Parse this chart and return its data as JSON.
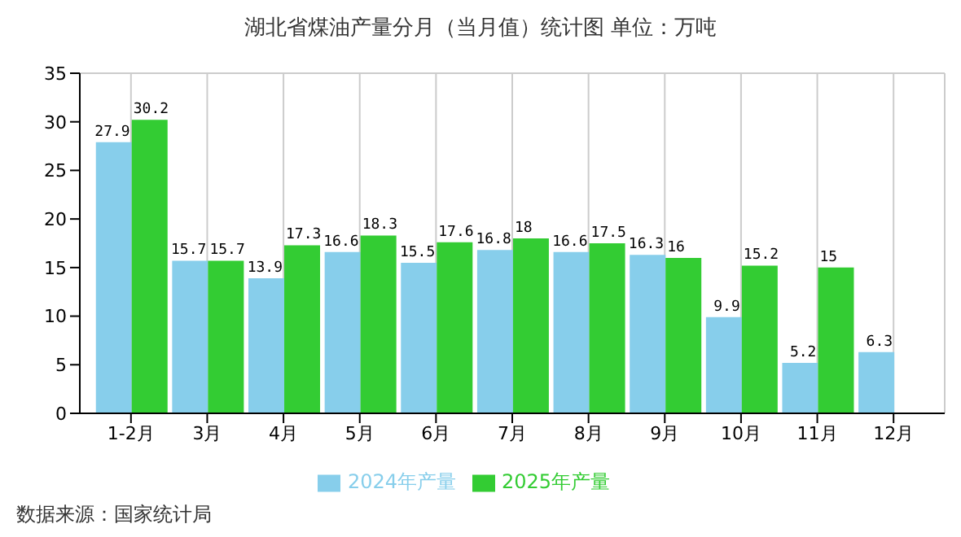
{
  "chart_data": {
    "type": "bar",
    "title": "湖北省煤油产量分月（当月值）统计图 单位：万吨",
    "categories": [
      "1-2月",
      "3月",
      "4月",
      "5月",
      "6月",
      "7月",
      "8月",
      "9月",
      "10月",
      "11月",
      "12月"
    ],
    "series": [
      {
        "name": "2024年产量",
        "color": "#87ceeb",
        "values": [
          27.9,
          15.7,
          13.9,
          16.6,
          15.5,
          16.8,
          16.6,
          16.3,
          9.9,
          5.2,
          6.3
        ]
      },
      {
        "name": "2025年产量",
        "color": "#33cc33",
        "values": [
          30.2,
          15.7,
          17.3,
          18.3,
          17.6,
          18,
          17.5,
          16,
          15.2,
          15,
          null
        ]
      }
    ],
    "ylim": [
      0,
      35
    ],
    "yticks": [
      0,
      5,
      10,
      15,
      20,
      25,
      30,
      35
    ],
    "grid": true,
    "legend": "bottom",
    "data_labels": true,
    "annotations": [
      "数据来源：国家统计局"
    ]
  }
}
